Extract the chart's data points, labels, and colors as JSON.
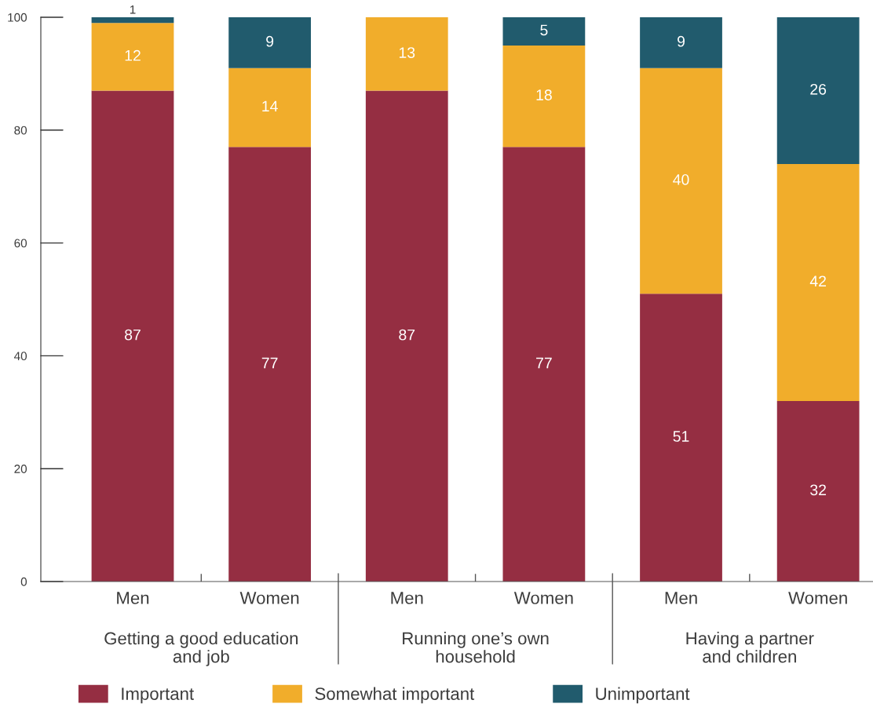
{
  "chart_data": {
    "type": "bar",
    "stacked": true,
    "categories": [
      "Men",
      "Women",
      "Men",
      "Women",
      "Men",
      "Women"
    ],
    "series": [
      {
        "name": "Important",
        "color": "#952e42",
        "values": [
          87,
          77,
          87,
          77,
          51,
          32
        ],
        "value_labels": [
          "87",
          "77",
          "87",
          "77",
          "51",
          "32"
        ]
      },
      {
        "name": "Somewhat important",
        "color": "#f1ad2b",
        "values": [
          12,
          14,
          13,
          18,
          40,
          42
        ],
        "value_labels": [
          "12",
          "14",
          "13",
          "18",
          "40",
          "42"
        ]
      },
      {
        "name": "Unimportant",
        "color": "#215b6d",
        "values": [
          1,
          9,
          null,
          5,
          9,
          26
        ],
        "value_labels": [
          "1",
          "9",
          null,
          "5",
          "9",
          "26"
        ]
      }
    ],
    "ylim": [
      0,
      100
    ],
    "yticks": [
      0,
      20,
      40,
      60,
      80,
      100
    ],
    "grid": false,
    "legend": "bottom",
    "annotations": [
      "Getting a good education\nand job",
      "Running one’s own\nhousehold",
      "Having a partner\nand children"
    ]
  }
}
